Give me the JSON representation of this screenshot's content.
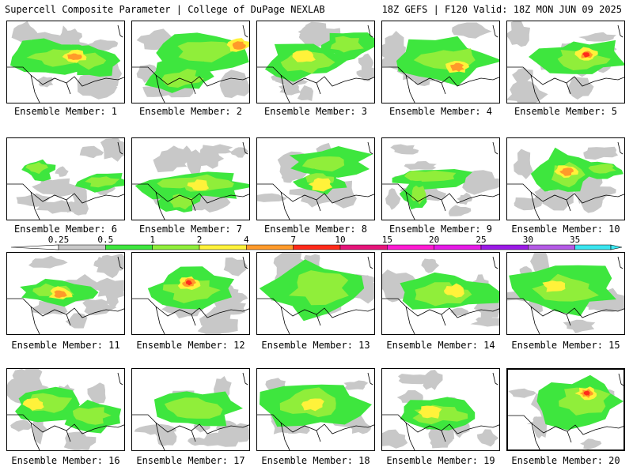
{
  "header": {
    "left": "Supercell Composite Parameter | College of DuPage NEXLAB",
    "right": "18Z GEFS | F120 Valid: 18Z MON JUN 09 2025"
  },
  "members": [
    {
      "label": "Ensemble Member: 1"
    },
    {
      "label": "Ensemble Member: 2"
    },
    {
      "label": "Ensemble Member: 3"
    },
    {
      "label": "Ensemble Member: 4"
    },
    {
      "label": "Ensemble Member: 5"
    },
    {
      "label": "Ensemble Member: 6"
    },
    {
      "label": "Ensemble Member: 7"
    },
    {
      "label": "Ensemble Member: 8"
    },
    {
      "label": "Ensemble Member: 9"
    },
    {
      "label": "Ensemble Member: 10"
    },
    {
      "label": "Ensemble Member: 11"
    },
    {
      "label": "Ensemble Member: 12"
    },
    {
      "label": "Ensemble Member: 13"
    },
    {
      "label": "Ensemble Member: 14"
    },
    {
      "label": "Ensemble Member: 15"
    },
    {
      "label": "Ensemble Member: 16"
    },
    {
      "label": "Ensemble Member: 17"
    },
    {
      "label": "Ensemble Member: 18"
    },
    {
      "label": "Ensemble Member: 19"
    },
    {
      "label": "Ensemble Member: 20"
    }
  ],
  "colorbar": {
    "levels": [
      "0.25",
      "0.5",
      "1",
      "2",
      "4",
      "7",
      "10",
      "15",
      "20",
      "25",
      "30",
      "35"
    ],
    "colors": [
      "#c8c8c8",
      "#3ee63e",
      "#90ee3a",
      "#fff23a",
      "#ff9a2a",
      "#ff2a1a",
      "#e6147a",
      "#ff1ad2",
      "#e61ae6",
      "#9b1ae6",
      "#b45ae6",
      "#3ae6f0"
    ]
  }
}
